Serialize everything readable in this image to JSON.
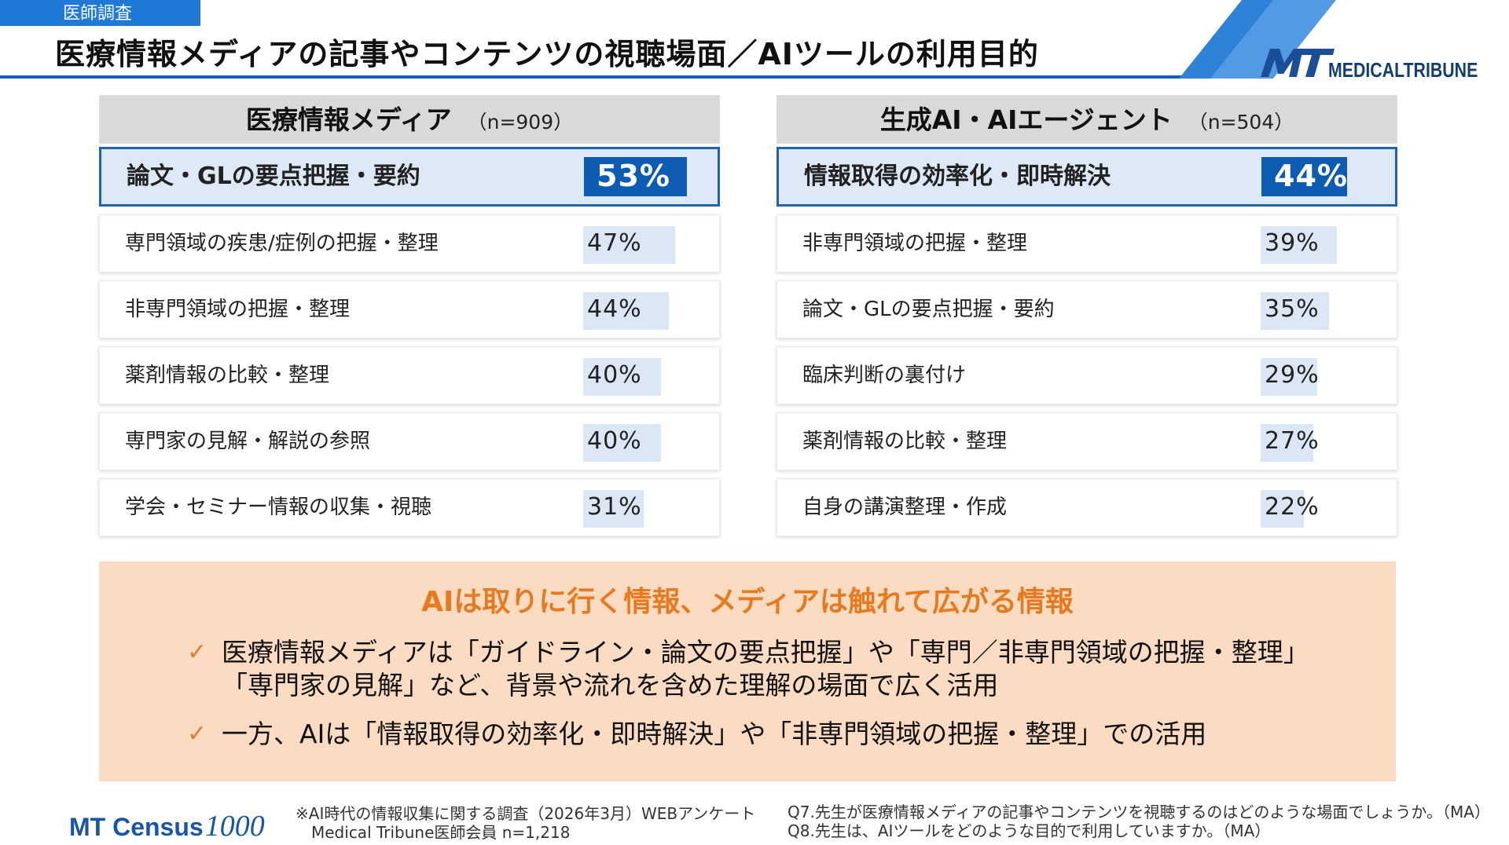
{
  "header": {
    "tag": "医師調査",
    "title": "医療情報メディアの記事やコンテンツの視聴場面／AIツールの利用目的",
    "brand_mark": "MT",
    "brand_text": "MEDICALTRIBUNE",
    "accent_color": "#0c5fb5"
  },
  "panels": [
    {
      "title": "医療情報メディア",
      "n": "（n=909）",
      "items": [
        {
          "label": "論文・GLの要点把握・要約",
          "pct": "53%",
          "value": 53
        },
        {
          "label": "専門領域の疾患/症例の把握・整理",
          "pct": "47%",
          "value": 47
        },
        {
          "label": "非専門領域の把握・整理",
          "pct": "44%",
          "value": 44
        },
        {
          "label": "薬剤情報の比較・整理",
          "pct": "40%",
          "value": 40
        },
        {
          "label": "専門家の見解・解説の参照",
          "pct": "40%",
          "value": 40
        },
        {
          "label": "学会・セミナー情報の収集・視聴",
          "pct": "31%",
          "value": 31
        }
      ]
    },
    {
      "title": "生成AI・AIエージェント",
      "n": "（n=504）",
      "items": [
        {
          "label": "情報取得の効率化・即時解決",
          "pct": "44%",
          "value": 44
        },
        {
          "label": "非専門領域の把握・整理",
          "pct": "39%",
          "value": 39
        },
        {
          "label": "論文・GLの要点把握・要約",
          "pct": "35%",
          "value": 35
        },
        {
          "label": "臨床判断の裏付け",
          "pct": "29%",
          "value": 29
        },
        {
          "label": "薬剤情報の比較・整理",
          "pct": "27%",
          "value": 27
        },
        {
          "label": "自身の講演整理・作成",
          "pct": "22%",
          "value": 22
        }
      ]
    }
  ],
  "summary": {
    "title": "AIは取りに行く情報、メディアは触れて広がる情報",
    "check_icon": "check-icon",
    "point1_line1": "医療情報メディアは「ガイドライン・論文の要点把握」や「専門／非専門領域の把握・整理」",
    "point1_line2": "「専門家の見解」など、背景や流れを含めた理解の場面で広く活用",
    "point2": "一方、AIは「情報取得の効率化・即時解決」や「非専門領域の把握・整理」での活用"
  },
  "footer": {
    "logo_main": "MT Census",
    "logo_script": "1000",
    "source_line1": "※AI時代の情報収集に関する調査（2026年3月）WEBアンケート",
    "source_line2": "Medical Tribune医師会員 n=1,218",
    "q7": "Q7.先生が医療情報メディアの記事やコンテンツを視聴するのはどのような場面でしょうか。（MA）",
    "q8": "Q8.先生は、AIツールをどのような目的で利用していますか。（MA）"
  }
}
